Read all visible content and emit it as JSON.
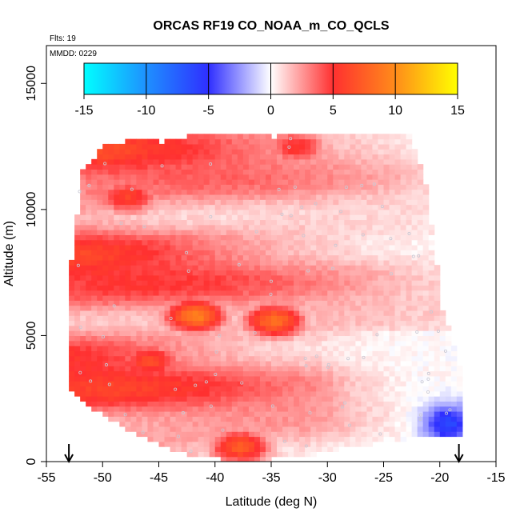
{
  "chart_data": {
    "type": "heatmap",
    "title": "ORCAS RF19 CO_NOAA_m_CO_QCLS",
    "annotations": {
      "flights": "Flts: 19",
      "mmdd": "MMDD: 0229"
    },
    "xlabel": "Latitude (deg N)",
    "ylabel": "Altitude (m)",
    "xlim": [
      -55,
      -15
    ],
    "ylim": [
      0,
      16500
    ],
    "xticks": [
      -55,
      -50,
      -45,
      -40,
      -35,
      -30,
      -25,
      -20,
      -15
    ],
    "yticks": [
      0,
      5000,
      10000,
      15000
    ],
    "colorbar": {
      "ticks": [
        -15,
        -10,
        -5,
        0,
        5,
        10,
        15
      ],
      "range": [
        -15,
        15
      ],
      "stops": [
        {
          "value": -15,
          "color": "#00ffff"
        },
        {
          "value": -10,
          "color": "#1e90ff"
        },
        {
          "value": -5,
          "color": "#2f2fff"
        },
        {
          "value": 0,
          "color": "#ffffff"
        },
        {
          "value": 5,
          "color": "#ff3030"
        },
        {
          "value": 10,
          "color": "#ff8c1a"
        },
        {
          "value": 15,
          "color": "#ffff00"
        }
      ]
    },
    "markers": [
      {
        "lat": -53,
        "label": "arrow"
      },
      {
        "lat": -18.3,
        "label": "arrow"
      }
    ],
    "field": {
      "alt_step": 200,
      "lat_step": 0.5,
      "profiles": [
        {
          "lat": -53.0,
          "alt_min": 2900,
          "alt_max": 8000
        },
        {
          "lat": -52.0,
          "alt_min": 2400,
          "alt_max": 11500
        },
        {
          "lat": -50.0,
          "alt_min": 1900,
          "alt_max": 12500
        },
        {
          "lat": -47.0,
          "alt_min": 1100,
          "alt_max": 12700
        },
        {
          "lat": -45.0,
          "alt_min": 700,
          "alt_max": 12600
        },
        {
          "lat": -42.0,
          "alt_min": 300,
          "alt_max": 12900
        },
        {
          "lat": -38.0,
          "alt_min": 100,
          "alt_max": 12900
        },
        {
          "lat": -35.0,
          "alt_min": 200,
          "alt_max": 12800
        },
        {
          "lat": -32.0,
          "alt_min": 300,
          "alt_max": 12900
        },
        {
          "lat": -29.0,
          "alt_min": 600,
          "alt_max": 13000
        },
        {
          "lat": -26.0,
          "alt_min": 800,
          "alt_max": 13000
        },
        {
          "lat": -23.0,
          "alt_min": 1000,
          "alt_max": 12900
        },
        {
          "lat": -21.5,
          "alt_min": 1000,
          "alt_max": 11000
        },
        {
          "lat": -20.0,
          "alt_min": 1000,
          "alt_max": 6000
        },
        {
          "lat": -18.5,
          "alt_min": 1000,
          "alt_max": 3800
        }
      ],
      "hotspots": [
        {
          "lat": -42,
          "alt": 5800,
          "value": 9.5
        },
        {
          "lat": -35,
          "alt": 5600,
          "value": 8.5
        },
        {
          "lat": -38,
          "alt": 600,
          "value": 7.5
        },
        {
          "lat": -46,
          "alt": 4000,
          "value": 6.5
        },
        {
          "lat": -48,
          "alt": 3000,
          "value": 6.0
        },
        {
          "lat": -48,
          "alt": 10500,
          "value": 6.0
        },
        {
          "lat": -33,
          "alt": 12500,
          "value": 5.5
        }
      ],
      "low_region": {
        "lat": -19.5,
        "alt": 1500,
        "value": -6.5
      }
    }
  }
}
